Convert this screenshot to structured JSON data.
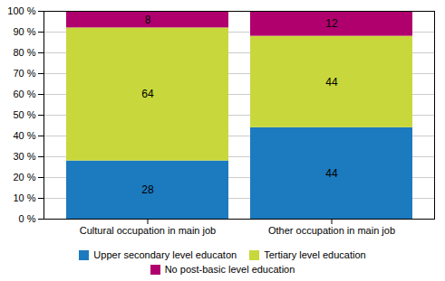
{
  "chart_data": {
    "type": "bar",
    "stacked": true,
    "categories": [
      "Cultural occupation in main job",
      "Other occupation in main job"
    ],
    "series": [
      {
        "name": "Upper secondary level educaton",
        "values": [
          28,
          44
        ],
        "color": "#1c7abf"
      },
      {
        "name": "Tertiary level education",
        "values": [
          64,
          44
        ],
        "color": "#c8d83c"
      },
      {
        "name": "No post-basic level education",
        "values": [
          8,
          12
        ],
        "color": "#b0006e"
      }
    ],
    "ylim": [
      0,
      100
    ],
    "yticks": [
      {
        "value": 0,
        "label": "0 %"
      },
      {
        "value": 10,
        "label": "10 %"
      },
      {
        "value": 20,
        "label": "20 %"
      },
      {
        "value": 30,
        "label": "30 %"
      },
      {
        "value": 40,
        "label": "40 %"
      },
      {
        "value": 50,
        "label": "50 %"
      },
      {
        "value": 60,
        "label": "60 %"
      },
      {
        "value": 70,
        "label": "70 %"
      },
      {
        "value": 80,
        "label": "80 %"
      },
      {
        "value": 90,
        "label": "90 %"
      },
      {
        "value": 100,
        "label": "100 %"
      }
    ],
    "grid": true,
    "data_labels": true,
    "legend": "bottom"
  }
}
